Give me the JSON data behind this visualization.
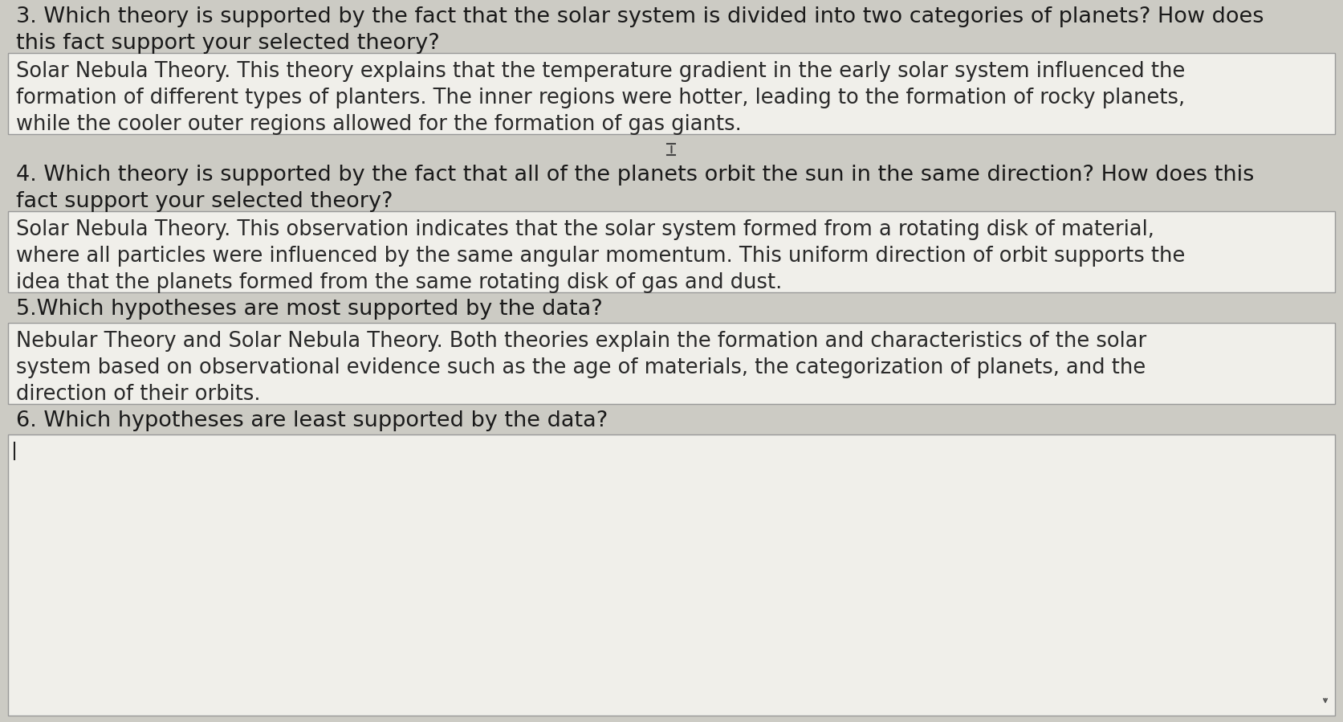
{
  "bg_color": "#cccbc4",
  "box_bg_color": "#f0efea",
  "box_border_color": "#999999",
  "text_color": "#2a2a2a",
  "question_color": "#1a1a1a",
  "sections": [
    {
      "type": "question",
      "text": "3. Which theory is supported by the fact that the solar system is divided into two categories of planets? How does\nthis fact support your selected theory?"
    },
    {
      "type": "answer_box",
      "lines": 3,
      "text": "Solar Nebula Theory. This theory explains that the temperature gradient in the early solar system influenced the\nformation of different types of planters. The inner regions were hotter, leading to the formation of rocky planets,\nwhile the cooler outer regions allowed for the formation of gas giants."
    },
    {
      "type": "cursor_gap"
    },
    {
      "type": "question",
      "text": "4. Which theory is supported by the fact that all of the planets orbit the sun in the same direction? How does this\nfact support your selected theory?"
    },
    {
      "type": "answer_box",
      "lines": 3,
      "text": "Solar Nebula Theory. This observation indicates that the solar system formed from a rotating disk of material,\nwhere all particles were influenced by the same angular momentum. This uniform direction of orbit supports the\nidea that the planets formed from the same rotating disk of gas and dust."
    },
    {
      "type": "question",
      "text": "5.Which hypotheses are most supported by the data?"
    },
    {
      "type": "answer_box",
      "lines": 3,
      "text": "Nebular Theory and Solar Nebula Theory. Both theories explain the formation and characteristics of the solar\nsystem based on observational evidence such as the age of materials, the categorization of planets, and the\ndirection of their orbits."
    },
    {
      "type": "question",
      "text": "6. Which hypotheses are least supported by the data?"
    },
    {
      "type": "answer_box_empty"
    }
  ],
  "font_size_question": 19.5,
  "font_size_answer": 18.5,
  "figsize": [
    16.73,
    8.99
  ],
  "dpi": 100
}
